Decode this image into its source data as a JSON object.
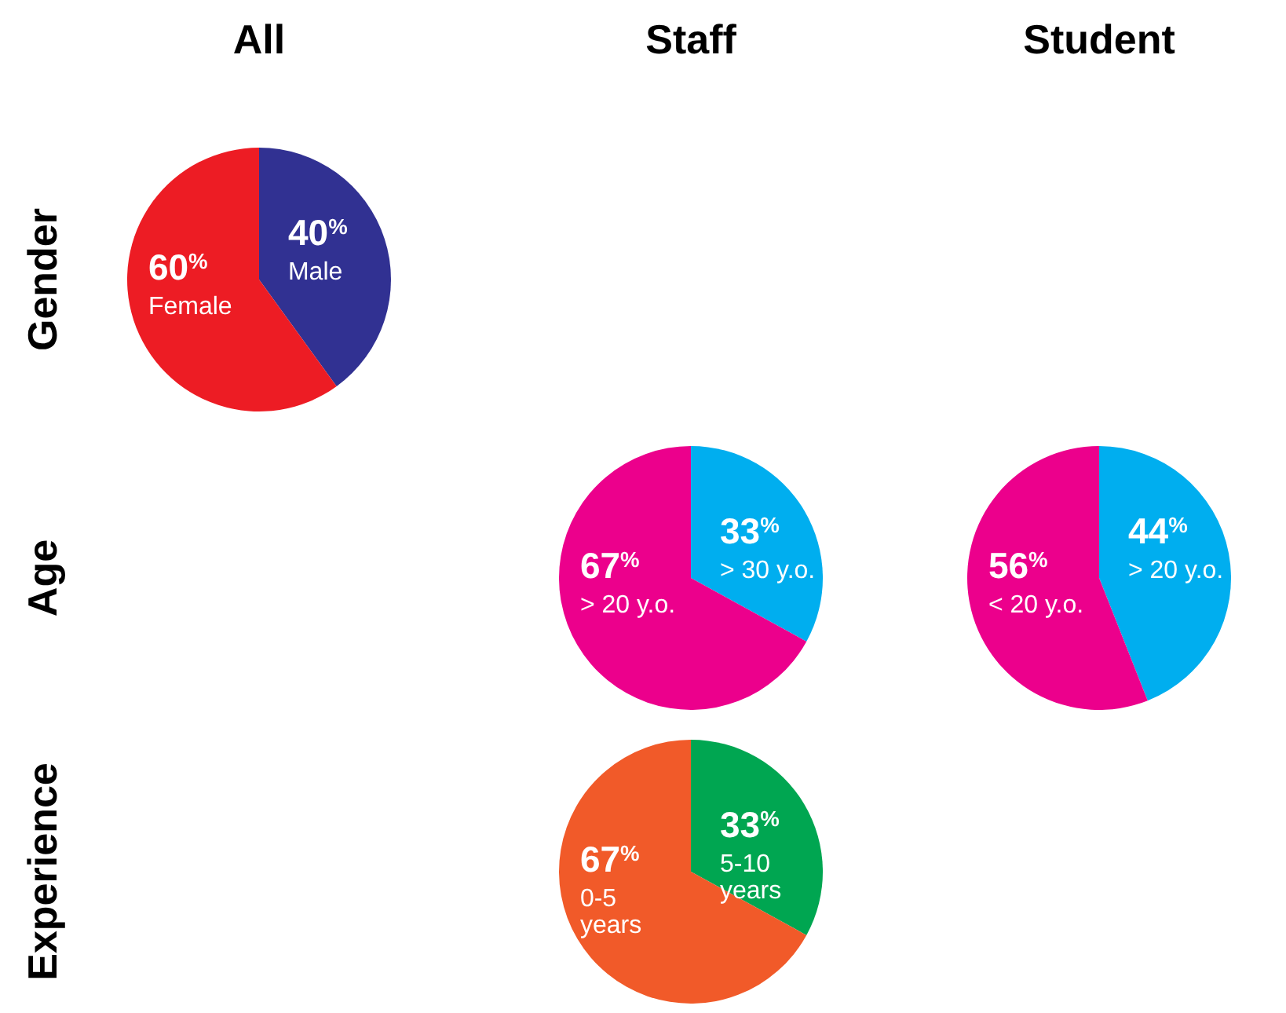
{
  "chart_data": [
    {
      "type": "pie",
      "title": "All",
      "ylabel": "Gender",
      "categories": [
        "Male",
        "Female"
      ],
      "values": [
        40,
        60
      ],
      "colors": [
        "#313192",
        "#ed1c24"
      ],
      "value_labels": [
        "40$^{%}$",
        "60$^{%}$"
      ]
    },
    {
      "type": "pie",
      "title": "Staff",
      "ylabel": "Age",
      "categories": [
        "> 30 y.o.",
        "> 20 y.o."
      ],
      "values": [
        33,
        67
      ],
      "colors": [
        "#00aeef",
        "#ec008c"
      ],
      "value_labels": [
        "33$^{%}$",
        "67$^{%}$"
      ]
    },
    {
      "type": "pie",
      "title": "Student",
      "categories": [
        "> 20 y.o.",
        "< 20 y.o."
      ],
      "values": [
        44,
        56
      ],
      "colors": [
        "#00aeef",
        "#ec008c"
      ],
      "value_labels": [
        "44$^{%}$",
        "56$^{%}$"
      ]
    },
    {
      "type": "pie",
      "ylabel": "Experience",
      "categories": [
        "5-10\nyears",
        "0-5\nyears"
      ],
      "values": [
        33,
        67
      ],
      "colors": [
        "#00a651",
        "#f15a29"
      ],
      "value_labels": [
        "33$^{%}$",
        "67$^{%}$"
      ]
    }
  ]
}
